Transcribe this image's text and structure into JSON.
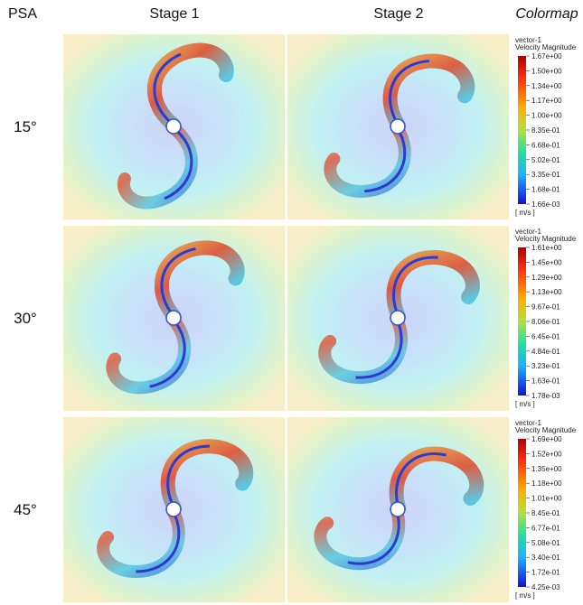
{
  "headers": {
    "psa": "PSA",
    "stage1": "Stage 1",
    "stage2": "Stage 2",
    "colormap": "Colormap"
  },
  "rows": [
    {
      "label": "15°",
      "legend": {
        "title": "vector-1",
        "subtitle": "Velocity Magnitude",
        "unit": "[ m/s ]",
        "ticks": [
          "1.67e+00",
          "1.50e+00",
          "1.34e+00",
          "1.17e+00",
          "1.00e+00",
          "8.35e-01",
          "6.68e-01",
          "5.02e-01",
          "3.35e-01",
          "1.68e-01",
          "1.66e-03"
        ]
      }
    },
    {
      "label": "30°",
      "legend": {
        "title": "vector-1",
        "subtitle": "Velocity Magnitude",
        "unit": "[ m/s ]",
        "ticks": [
          "1.61e+00",
          "1.45e+00",
          "1.29e+00",
          "1.13e+00",
          "9.67e-01",
          "8.06e-01",
          "6.45e-01",
          "4.84e-01",
          "3.23e-01",
          "1.63e-01",
          "1.78e-03"
        ]
      }
    },
    {
      "label": "45°",
      "legend": {
        "title": "vector-1",
        "subtitle": "Velocity Magnitude",
        "unit": "[ m/s ]",
        "ticks": [
          "1.69e+00",
          "1.52e+00",
          "1.35e+00",
          "1.18e+00",
          "1.01e+00",
          "8.45e-01",
          "6.77e-01",
          "5.08e-01",
          "3.40e-01",
          "1.72e-01",
          "4.25e-03"
        ]
      }
    }
  ]
}
